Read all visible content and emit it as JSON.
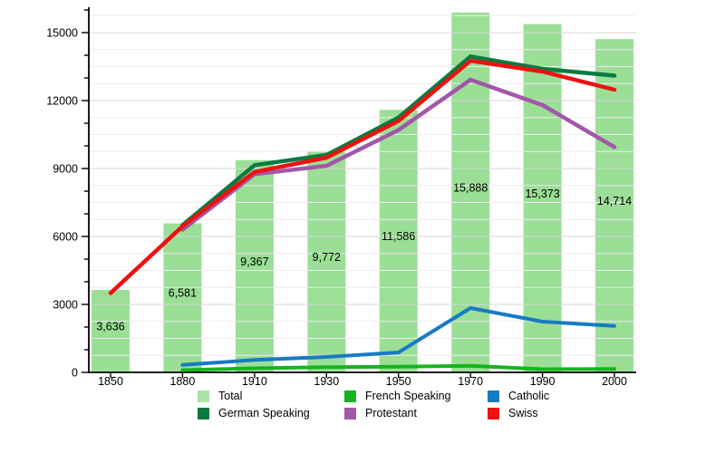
{
  "chart_data": {
    "type": "combo-bar-line",
    "title": "",
    "xlabel": "",
    "ylabel": "",
    "categories": [
      "1850",
      "1880",
      "1910",
      "1930",
      "1950",
      "1970",
      "1990",
      "2000"
    ],
    "bar_series": {
      "name": "Total",
      "values": [
        3636,
        6581,
        9367,
        9772,
        11586,
        15888,
        15373,
        14714
      ],
      "value_labels": [
        "3,636",
        "6,581",
        "9,367",
        "9,772",
        "11,586",
        "15,888",
        "15,373",
        "14,714"
      ],
      "color": "#9bdf96"
    },
    "line_series": [
      {
        "name": "Protestant",
        "color": "#a257a9",
        "width": 4.5,
        "values": [
          null,
          6300,
          8750,
          9120,
          10700,
          12920,
          11800,
          9950
        ]
      },
      {
        "name": "German Speaking",
        "color": "#0a7b40",
        "width": 4.5,
        "values": [
          null,
          6500,
          9150,
          9600,
          11250,
          13950,
          13400,
          13100
        ]
      },
      {
        "name": "French Speaking",
        "color": "#16b41e",
        "width": 4.0,
        "values": [
          null,
          100,
          180,
          230,
          250,
          290,
          140,
          150
        ]
      },
      {
        "name": "Catholic",
        "color": "#177ac5",
        "width": 4.0,
        "values": [
          null,
          330,
          550,
          680,
          880,
          2840,
          2240,
          2050
        ]
      },
      {
        "name": "Swiss",
        "color": "#ee1111",
        "width": 4.5,
        "values": [
          3500,
          6450,
          8850,
          9480,
          11100,
          13760,
          13280,
          12480
        ]
      }
    ],
    "y_axis": {
      "min": 0,
      "max": 16100,
      "major_tick_step": 3000,
      "minor_tick_step": 1000,
      "minor_grid_step": 750,
      "tick_labels": [
        "0",
        "3000",
        "6000",
        "9000",
        "12000",
        "15000"
      ]
    },
    "x_axis": {
      "tick_labels": [
        "1850",
        "1880",
        "1910",
        "1930",
        "1950",
        "1970",
        "1990",
        "2000"
      ]
    },
    "grid": {
      "horizontal": true,
      "vertical": false,
      "minor_color": "#ececec",
      "major_color": "#d7d7d7"
    },
    "axis_color": "#000000",
    "legend": {
      "position": "bottom",
      "columns": 3,
      "items": [
        {
          "label": "Total",
          "color": "#abe3a6"
        },
        {
          "label": "German Speaking",
          "color": "#0a7b40"
        },
        {
          "label": "French Speaking",
          "color": "#16b41e"
        },
        {
          "label": "Protestant",
          "color": "#a257a9"
        },
        {
          "label": "Catholic",
          "color": "#177ac5"
        },
        {
          "label": "Swiss",
          "color": "#ee1111"
        }
      ]
    }
  }
}
